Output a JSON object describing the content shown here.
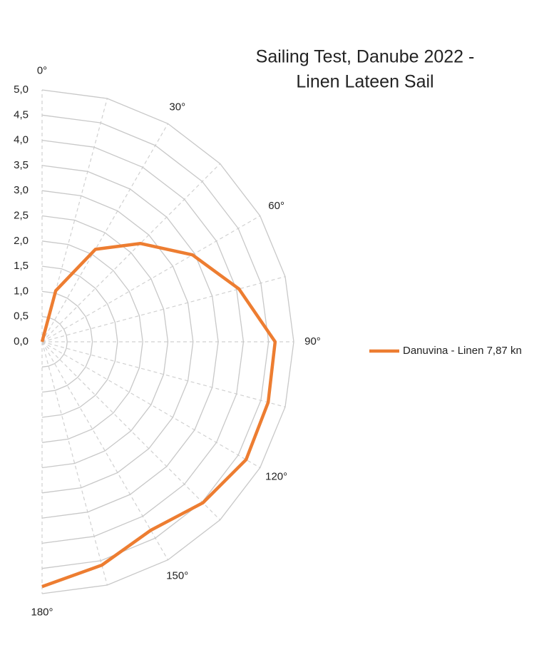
{
  "chart_data": {
    "type": "polar-line",
    "title": [
      "Sailing Test, Danube 2022 -",
      "Linen Lateen Sail"
    ],
    "x": [
      0,
      15,
      30,
      45,
      60,
      75,
      90,
      105,
      120,
      135,
      150,
      165,
      180
    ],
    "series": [
      {
        "name": "Danuvina - Linen 7,87 kn",
        "color": "#ed7d31",
        "values": [
          0,
          1.05,
          2.12,
          2.76,
          3.45,
          4.05,
          4.63,
          4.65,
          4.68,
          4.52,
          4.32,
          4.59,
          4.86
        ]
      }
    ],
    "ylim": [
      0,
      5
    ],
    "yticks": [
      {
        "value": 0,
        "label": "0,0"
      },
      {
        "value": 0.5,
        "label": "0,5"
      },
      {
        "value": 1,
        "label": "1,0"
      },
      {
        "value": 1.5,
        "label": "1,5"
      },
      {
        "value": 2,
        "label": "2,0"
      },
      {
        "value": 2.5,
        "label": "2,5"
      },
      {
        "value": 3,
        "label": "3,0"
      },
      {
        "value": 3.5,
        "label": "3,5"
      },
      {
        "value": 4,
        "label": "4,0"
      },
      {
        "value": 4.5,
        "label": "4,5"
      },
      {
        "value": 5,
        "label": "5,0"
      }
    ],
    "xlim": [
      0,
      180
    ],
    "xticks": [
      {
        "value": 0,
        "label": "0°"
      },
      {
        "value": 30,
        "label": "30°"
      },
      {
        "value": 60,
        "label": "60°"
      },
      {
        "value": 90,
        "label": "90°"
      },
      {
        "value": 120,
        "label": "120°"
      },
      {
        "value": 150,
        "label": "150°"
      },
      {
        "value": 180,
        "label": "180°"
      }
    ],
    "grid": true,
    "legend": "right"
  }
}
